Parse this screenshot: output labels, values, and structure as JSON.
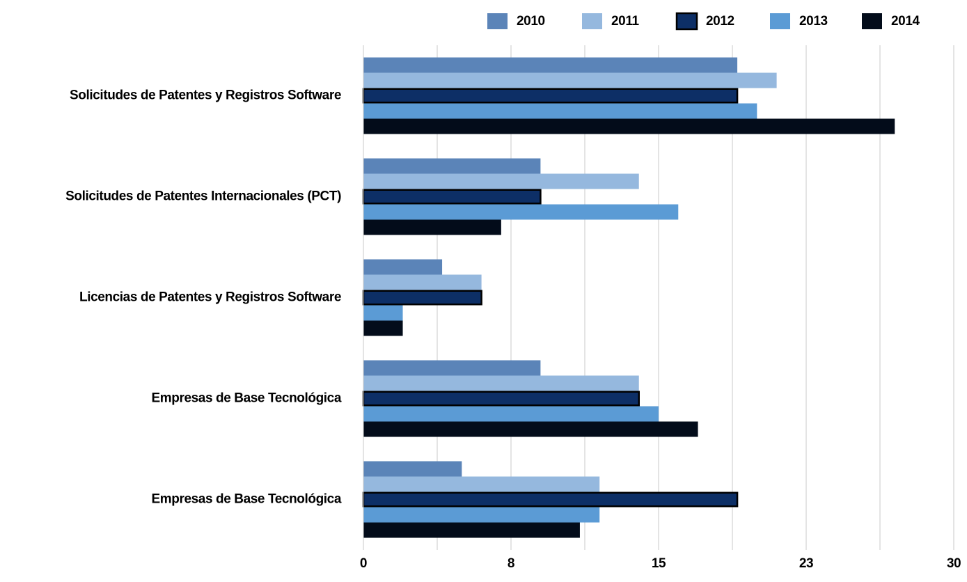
{
  "chart_data": {
    "type": "hbar",
    "categories": [
      "Solicitudes de Patentes y Registros Software",
      "Solicitudes de Patentes Internacionales (PCT)",
      "Licencias de Patentes y Registros Software",
      "Empresas de Base Tecnológica",
      "Empresas de Base Tecnológica"
    ],
    "series": [
      {
        "name": "2010",
        "color": "#5b84b8",
        "values": [
          19,
          9,
          4,
          9,
          5
        ]
      },
      {
        "name": "2011",
        "color": "#95b8de",
        "values": [
          21,
          14,
          6,
          14,
          12
        ]
      },
      {
        "name": "2012",
        "color": "#0d2f66",
        "outline": "#000000",
        "values": [
          19,
          9,
          6,
          14,
          19
        ]
      },
      {
        "name": "2013",
        "color": "#5b9bd5",
        "values": [
          20,
          16,
          2,
          15,
          12
        ]
      },
      {
        "name": "2014",
        "color": "#030c1a",
        "values": [
          27,
          7,
          2,
          17,
          11
        ]
      }
    ],
    "xlim": [
      0,
      30
    ],
    "xticks": [
      0,
      {
        "value": 7.5,
        "label": "8"
      },
      15,
      {
        "value": 22.5,
        "label": "23"
      },
      30
    ],
    "minor_xticks": [
      3.75,
      11.25,
      18.75,
      26.25
    ],
    "grid": true,
    "legend": "top"
  }
}
